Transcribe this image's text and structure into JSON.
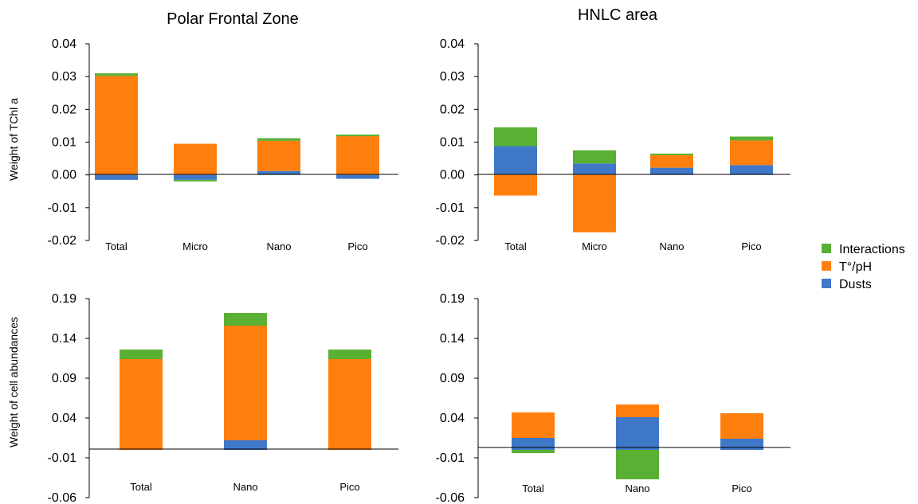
{
  "legend": [
    {
      "label": "Interactions",
      "color": "#5ab033"
    },
    {
      "label": "T°/pH",
      "color": "#ff7f0e"
    },
    {
      "label": "Dusts",
      "color": "#3f78c8"
    }
  ],
  "colors": {
    "Interactions": "#5ab033",
    "T°/pH": "#ff7f0e",
    "Dusts": "#3f78c8"
  },
  "chart_data": [
    {
      "type": "bar",
      "stacked": true,
      "title": "Polar Frontal Zone",
      "ylabel": "Weight of TChl a",
      "categories": [
        "Total",
        "Micro",
        "Nano",
        "Pico"
      ],
      "yticks": [
        "0.04",
        "0.03",
        "0.02",
        "0.01",
        "0.00",
        "-0.01",
        "-0.02"
      ],
      "ylim": [
        -0.02,
        0.04
      ],
      "series": [
        {
          "name": "Dusts",
          "values": [
            -0.0015,
            -0.0015,
            0.0012,
            -0.0012
          ]
        },
        {
          "name": "T°/pH",
          "values": [
            0.0302,
            0.0095,
            0.0092,
            0.0118
          ]
        },
        {
          "name": "Interactions",
          "values": [
            0.0008,
            -0.0005,
            0.0008,
            0.0005
          ]
        }
      ]
    },
    {
      "type": "bar",
      "stacked": true,
      "title": "HNLC area",
      "ylabel": "",
      "categories": [
        "Total",
        "Micro",
        "Nano",
        "Pico"
      ],
      "yticks": [
        "0.04",
        "0.03",
        "0.02",
        "0.01",
        "0.00",
        "-0.01",
        "-0.02"
      ],
      "ylim": [
        -0.02,
        0.04
      ],
      "series": [
        {
          "name": "Dusts",
          "values": [
            0.0088,
            0.0035,
            0.0022,
            0.003
          ]
        },
        {
          "name": "T°/pH",
          "values": [
            -0.0063,
            -0.0175,
            0.0038,
            0.0075
          ]
        },
        {
          "name": "Interactions",
          "values": [
            0.0057,
            0.004,
            0.0005,
            0.0012
          ]
        }
      ]
    },
    {
      "type": "bar",
      "stacked": true,
      "title": "",
      "ylabel": "Weight of cell abundances",
      "categories": [
        "Total",
        "Nano",
        "Pico"
      ],
      "yticks": [
        "0.19",
        "0.14",
        "0.09",
        "0.04",
        "-0.01",
        "-0.06"
      ],
      "ylim": [
        -0.06,
        0.19
      ],
      "series": [
        {
          "name": "Dusts",
          "values": [
            0,
            0.012,
            0
          ]
        },
        {
          "name": "T°/pH",
          "values": [
            0.114,
            0.144,
            0.114
          ]
        },
        {
          "name": "Interactions",
          "values": [
            0.012,
            0.016,
            0.012
          ]
        }
      ]
    },
    {
      "type": "bar",
      "stacked": true,
      "title": "",
      "ylabel": "",
      "categories": [
        "Total",
        "Nano",
        "Pico"
      ],
      "yticks": [
        "0.19",
        "0.14",
        "0.09",
        "0.04",
        "-0.01",
        "-0.06"
      ],
      "ylim": [
        -0.06,
        0.19
      ],
      "series": [
        {
          "name": "Dusts",
          "values": [
            0.015,
            0.041,
            0.014
          ]
        },
        {
          "name": "T°/pH",
          "values": [
            0.032,
            0.016,
            0.032
          ]
        },
        {
          "name": "Interactions",
          "values": [
            -0.004,
            -0.037,
            0
          ]
        }
      ]
    }
  ]
}
